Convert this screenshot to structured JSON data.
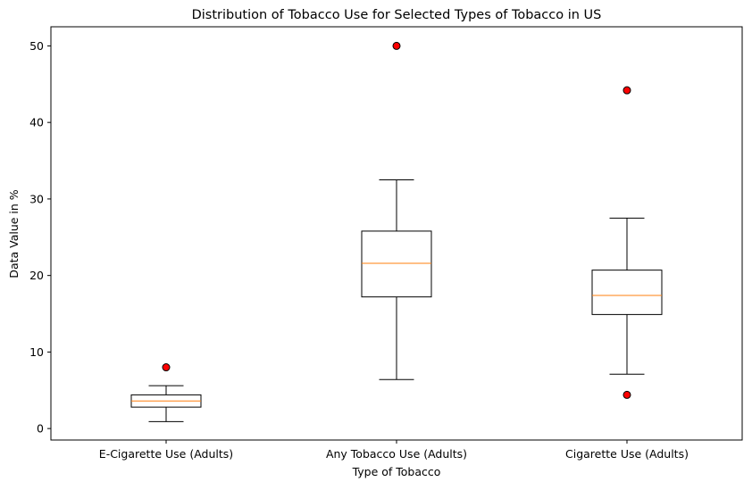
{
  "chart_data": {
    "type": "box",
    "title": "Distribution of Tobacco Use for Selected Types of Tobacco in US",
    "xlabel": "Type of Tobacco",
    "ylabel": "Data Value in %",
    "ylim": [
      -1.5,
      52.5
    ],
    "yticks": [
      0,
      10,
      20,
      30,
      40,
      50
    ],
    "categories": [
      "E-Cigarette Use (Adults)",
      "Any Tobacco Use (Adults)",
      "Cigarette Use (Adults)"
    ],
    "boxes": [
      {
        "category": "E-Cigarette Use (Adults)",
        "whisker_low": 0.9,
        "q1": 2.8,
        "median": 3.6,
        "q3": 4.4,
        "whisker_high": 5.6,
        "outliers": [
          8.0
        ]
      },
      {
        "category": "Any Tobacco Use (Adults)",
        "whisker_low": 6.4,
        "q1": 17.2,
        "median": 21.6,
        "q3": 25.8,
        "whisker_high": 32.5,
        "outliers": [
          50.0
        ]
      },
      {
        "category": "Cigarette Use (Adults)",
        "whisker_low": 7.1,
        "q1": 14.9,
        "median": 17.4,
        "q3": 20.7,
        "whisker_high": 27.5,
        "outliers": [
          44.2,
          4.4
        ]
      }
    ],
    "grid": false,
    "legend": "none",
    "colors": {
      "box": "#000000",
      "median": "#ff7f0e",
      "outlier_fill": "#ff0000",
      "outlier_edge": "#000000"
    }
  }
}
